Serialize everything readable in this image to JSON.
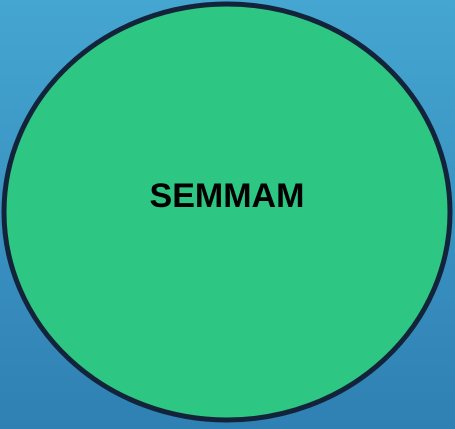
{
  "label": "SEMMAM"
}
